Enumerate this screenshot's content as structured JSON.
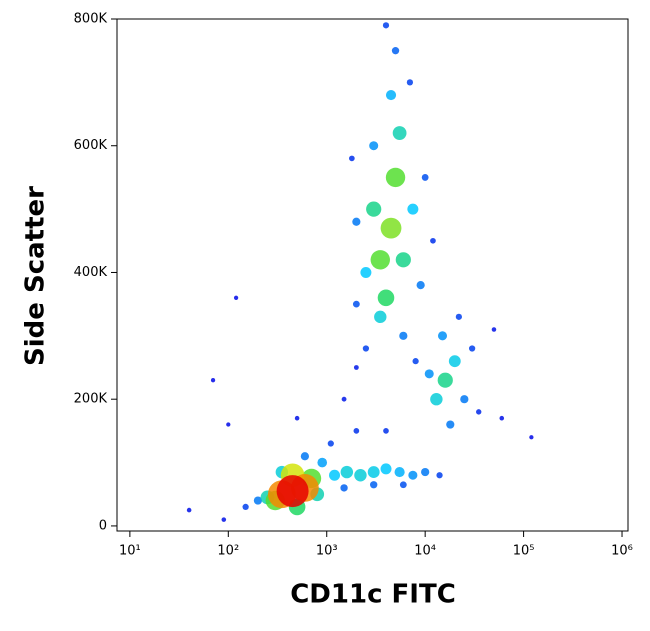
{
  "chart_data": {
    "type": "scatter",
    "x_label": "CD11c FITC",
    "y_label": "Side Scatter",
    "xscale": "log",
    "xlim": [
      7.4,
      1150000
    ],
    "ylim": [
      -8000,
      800000
    ],
    "xticks": [
      {
        "value": 10,
        "label": "10¹"
      },
      {
        "value": 100,
        "label": "10²"
      },
      {
        "value": 1000,
        "label": "10³"
      },
      {
        "value": 10000,
        "label": "10⁴"
      },
      {
        "value": 100000,
        "label": "10⁵"
      },
      {
        "value": 1000000,
        "label": "10⁶"
      }
    ],
    "yticks": [
      0,
      {
        "value": 200000,
        "label": "200K"
      },
      {
        "value": 400000,
        "label": "400K"
      },
      {
        "value": 600000,
        "label": "600K"
      },
      {
        "value": 800000,
        "label": "800K"
      }
    ],
    "x": [
      2000,
      1500,
      60000,
      500,
      90,
      40,
      120,
      100,
      70,
      120000,
      50000,
      150,
      600,
      200,
      900,
      250,
      350,
      800,
      500,
      300,
      700,
      450,
      350,
      600,
      450,
      14000,
      1100,
      2000,
      4000,
      6000,
      3000,
      1500,
      10000,
      7500,
      5500,
      4000,
      1200,
      3000,
      1600,
      2200,
      1800,
      12000,
      4000,
      2500,
      7000,
      8000,
      2000,
      10000,
      5000,
      2000,
      9000,
      6000,
      3000,
      4500,
      2500,
      7500,
      3500,
      5500,
      6000,
      3000,
      4000,
      3500,
      5000,
      4500,
      35000,
      30000,
      22000,
      25000,
      18000,
      15000,
      11000,
      20000,
      13000,
      16000
    ],
    "values": [
      250000,
      200000,
      170000,
      170000,
      10000,
      25000,
      360000,
      160000,
      230000,
      140000,
      310000,
      30000,
      110000,
      40000,
      100000,
      45000,
      85000,
      50000,
      30000,
      40000,
      75000,
      80000,
      50000,
      60000,
      55000,
      80000,
      130000,
      150000,
      150000,
      65000,
      65000,
      60000,
      85000,
      80000,
      85000,
      90000,
      80000,
      85000,
      85000,
      80000,
      580000,
      450000,
      790000,
      280000,
      700000,
      260000,
      350000,
      550000,
      750000,
      480000,
      380000,
      300000,
      600000,
      680000,
      400000,
      500000,
      330000,
      620000,
      420000,
      500000,
      360000,
      420000,
      550000,
      470000,
      180000,
      280000,
      330000,
      200000,
      160000,
      300000,
      240000,
      260000,
      200000,
      230000
    ],
    "density": [
      3,
      3,
      2,
      2,
      2,
      2,
      1,
      1,
      1,
      1,
      2,
      8,
      15,
      15,
      20,
      35,
      30,
      35,
      45,
      55,
      55,
      70,
      85,
      85,
      100,
      8,
      8,
      6,
      6,
      10,
      12,
      12,
      15,
      18,
      22,
      25,
      25,
      28,
      30,
      30,
      6,
      6,
      8,
      8,
      8,
      8,
      10,
      10,
      12,
      15,
      15,
      15,
      18,
      22,
      25,
      25,
      30,
      35,
      40,
      40,
      45,
      55,
      55,
      60,
      5,
      8,
      8,
      15,
      15,
      18,
      18,
      28,
      30,
      40
    ]
  }
}
